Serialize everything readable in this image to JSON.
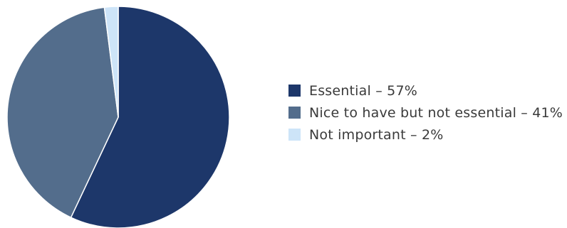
{
  "chart_data": {
    "type": "pie",
    "title": "",
    "slices": [
      {
        "label": "Essential – 57%",
        "value": 57,
        "color": "#1d376a"
      },
      {
        "label": "Nice to have but not essential – 41%",
        "value": 41,
        "color": "#536d8c"
      },
      {
        "label": "Not important – 2%",
        "value": 2,
        "color": "#cde4f8"
      }
    ],
    "legend_position": "right"
  }
}
